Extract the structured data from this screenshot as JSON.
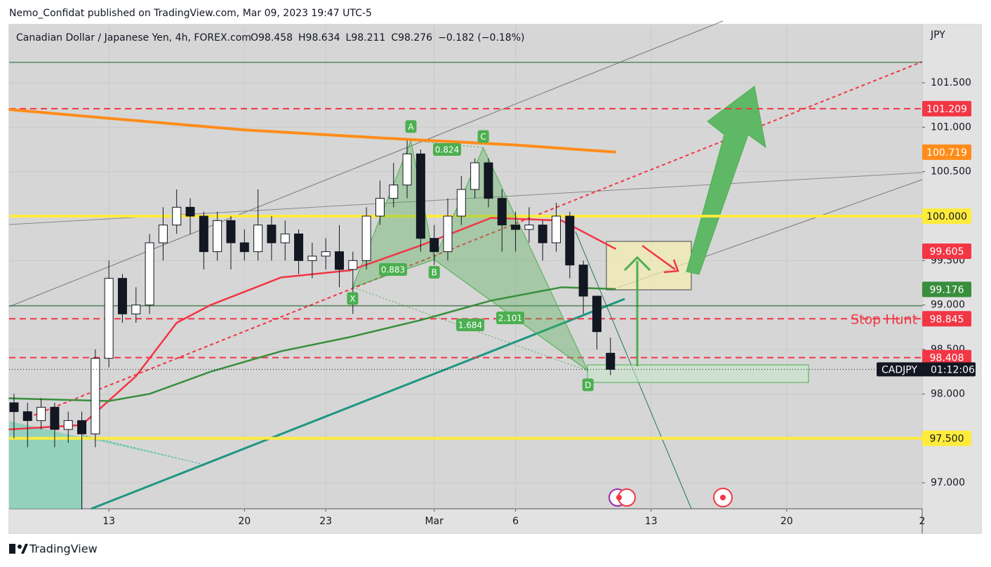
{
  "header": {
    "publisher": "Nemo_Confidat published on TradingView.com, Mar 09, 2023 19:47 UTC-5"
  },
  "footer": {
    "brand": "TradingView"
  },
  "chart_data": {
    "type": "candlestick",
    "title": "Canadian Dollar / Japanese Yen, 4h, FOREX.com",
    "legend_values": [
      "O98.458",
      "H98.634",
      "L98.211",
      "C98.276",
      "−0.182 (−0.18%)"
    ],
    "currency": "JPY",
    "x": [
      -3.5,
      -3,
      -2.5,
      -2,
      -1.5,
      -1,
      -0.5,
      0,
      0.5,
      1,
      1.5,
      2,
      2.5,
      3,
      3.5,
      4,
      4.5,
      5,
      5.5,
      6,
      6.5,
      7,
      7.5,
      8,
      8.5,
      9,
      9.5,
      10,
      10.5,
      11,
      11.5,
      12,
      12.5,
      13,
      13.5,
      14,
      14.5,
      15,
      15.5,
      16,
      16.5,
      17,
      17.5,
      18,
      18.5
    ],
    "open": [
      97.9,
      97.8,
      97.7,
      97.85,
      97.6,
      97.7,
      97.55,
      98.4,
      99.3,
      98.9,
      99.0,
      99.7,
      99.9,
      100.1,
      100.0,
      99.6,
      99.95,
      99.7,
      99.6,
      99.9,
      99.7,
      99.8,
      99.5,
      99.55,
      99.6,
      99.4,
      99.5,
      100.0,
      100.2,
      100.35,
      100.7,
      99.75,
      99.6,
      100.0,
      100.3,
      100.6,
      100.2,
      99.9,
      99.85,
      99.9,
      99.7,
      100.0,
      99.45,
      99.1,
      98.458
    ],
    "high": [
      98.0,
      97.9,
      97.95,
      97.9,
      97.8,
      97.8,
      98.5,
      99.5,
      99.35,
      99.2,
      99.8,
      100.1,
      100.3,
      100.2,
      100.05,
      100.05,
      100.0,
      99.85,
      100.3,
      100.0,
      99.95,
      99.85,
      99.7,
      99.75,
      99.9,
      99.6,
      100.1,
      100.4,
      100.6,
      100.85,
      100.75,
      99.9,
      100.2,
      100.45,
      100.65,
      100.65,
      100.3,
      100.05,
      100.1,
      99.95,
      100.15,
      100.05,
      99.5,
      99.1,
      98.634
    ],
    "low": [
      97.5,
      97.4,
      97.6,
      97.4,
      97.45,
      96.7,
      97.4,
      98.3,
      98.8,
      98.8,
      98.9,
      99.5,
      99.8,
      99.8,
      99.4,
      99.5,
      99.4,
      99.5,
      99.5,
      99.5,
      99.5,
      99.35,
      99.3,
      99.4,
      99.2,
      98.9,
      99.4,
      99.9,
      100.1,
      100.2,
      99.6,
      99.45,
      99.5,
      99.9,
      100.2,
      100.1,
      99.6,
      99.6,
      99.7,
      99.5,
      99.6,
      99.3,
      98.9,
      98.5,
      98.211
    ],
    "close": [
      97.8,
      97.7,
      97.85,
      97.6,
      97.7,
      97.55,
      98.4,
      99.3,
      98.9,
      99.0,
      99.7,
      99.9,
      100.1,
      100.0,
      99.6,
      99.95,
      99.7,
      99.6,
      99.9,
      99.7,
      99.8,
      99.5,
      99.55,
      99.6,
      99.4,
      99.5,
      100.0,
      100.2,
      100.35,
      100.7,
      99.75,
      99.6,
      100.0,
      100.3,
      100.6,
      100.2,
      99.9,
      99.85,
      99.9,
      99.7,
      100.0,
      99.45,
      99.1,
      98.7,
      98.276
    ],
    "series": [
      {
        "color": "#ff8c1a",
        "x": [
          -3.7,
          0,
          5,
          10,
          15,
          18.7
        ],
        "values": [
          101.2,
          101.1,
          100.97,
          100.88,
          100.8,
          100.72
        ]
      },
      {
        "color": "#f23645",
        "x": [
          -3.7,
          -1,
          1,
          2.5,
          3.75,
          6.35,
          8.9,
          11.5,
          14.1,
          16.7,
          18.7
        ],
        "values": [
          97.6,
          97.65,
          98.2,
          98.8,
          99.0,
          99.31,
          99.39,
          99.67,
          99.98,
          99.95,
          99.63
        ]
      },
      {
        "color": "#388e3c",
        "x": [
          -3.7,
          0,
          1.5,
          3.75,
          6.35,
          8.9,
          11.5,
          14.1,
          16.7,
          18.7
        ],
        "values": [
          97.95,
          97.92,
          98.0,
          98.25,
          98.48,
          98.64,
          98.83,
          99.05,
          99.2,
          99.18
        ]
      }
    ],
    "xlim": [
      -3.68,
      30.0
    ],
    "xticks": [
      {
        "value": 0,
        "label": "13"
      },
      {
        "value": 5,
        "label": "20"
      },
      {
        "value": 8,
        "label": "23"
      },
      {
        "value": 12,
        "label": "Mar"
      },
      {
        "value": 15,
        "label": "6"
      },
      {
        "value": 20,
        "label": "13"
      },
      {
        "value": 25,
        "label": "20"
      },
      {
        "value": 30,
        "label": "2"
      }
    ],
    "ylim": [
      96.708,
      102.155
    ],
    "yticks": [
      {
        "value": 97,
        "label": "97.000"
      },
      {
        "value": 98,
        "label": "98.000"
      },
      {
        "value": 98.5,
        "label": "98.500"
      },
      {
        "value": 99,
        "label": "99.000"
      },
      {
        "value": 99.5,
        "label": "99.500"
      },
      {
        "value": 100.5,
        "label": "100.500"
      },
      {
        "value": 101,
        "label": "101.000"
      },
      {
        "value": 101.5,
        "label": "101.500"
      }
    ],
    "grid": true,
    "price_labels": [
      {
        "value": 101.209,
        "label": "101.209",
        "color": "#f23645",
        "line": "dashed"
      },
      {
        "value": 100.719,
        "label": "100.719",
        "color": "#ff8c1a",
        "line": null
      },
      {
        "value": 100.0,
        "label": "100.000",
        "color": "#ffeb3b",
        "line": "solid"
      },
      {
        "value": 99.605,
        "label": "99.605",
        "color": "#f23645",
        "line": null
      },
      {
        "value": 99.176,
        "label": "99.176",
        "color": "#388e3c",
        "line": null
      },
      {
        "value": 98.845,
        "label": "98.845",
        "color": "#f23645",
        "line": "dashed"
      },
      {
        "value": 98.408,
        "label": "98.408",
        "color": "#f23645",
        "line": "dashed"
      },
      {
        "value": 97.5,
        "label": "97.500",
        "color": "#ffeb3b",
        "line": "solid"
      }
    ],
    "hlines": [
      {
        "value": 101.73,
        "color": "#1b5e20"
      },
      {
        "value": 98.99,
        "color": "#1b5e20"
      }
    ],
    "pattern": {
      "color": "#4caf50",
      "points": [
        {
          "label": "X",
          "x": 8.99,
          "value": 99.2
        },
        {
          "label": "A",
          "x": 11.14,
          "value": 100.85
        },
        {
          "label": "B",
          "x": 12.0,
          "value": 99.51
        },
        {
          "label": "C",
          "x": 13.81,
          "value": 100.77
        },
        {
          "label": "D",
          "x": 17.67,
          "value": 98.26
        }
      ],
      "ratios": [
        "0.824",
        "0.883",
        "1.684",
        "2.101"
      ]
    },
    "annotation": "Stop Hunt",
    "countdown": {
      "symbol": "CADJPY",
      "time": "01:12:06"
    }
  }
}
